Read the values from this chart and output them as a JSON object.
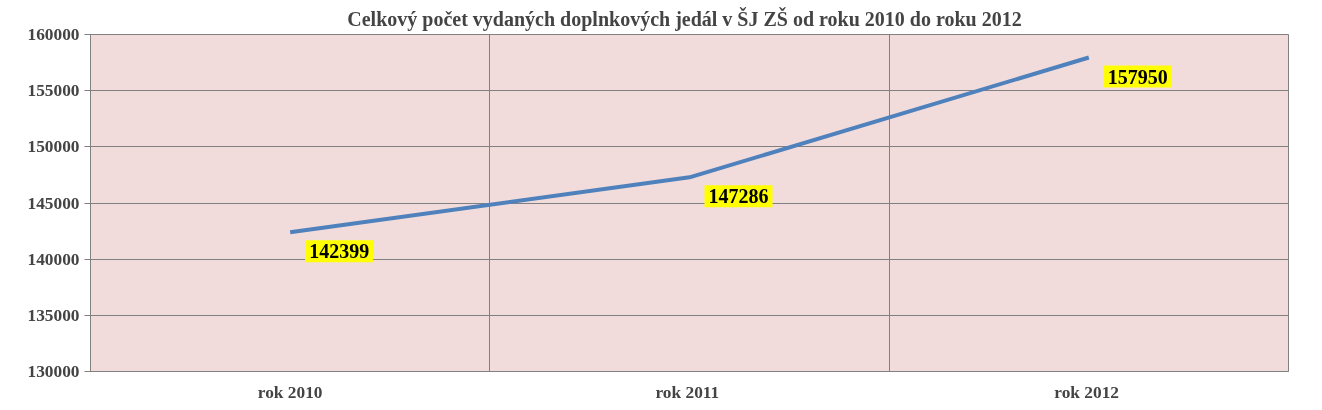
{
  "chart_data": {
    "type": "line",
    "title": "Celkový počet vydaných doplnkových jedál  v ŠJ ZŠ  od roku 2010 do roku 2012",
    "categories": [
      "rok 2010",
      "rok  2011",
      "rok  2012"
    ],
    "series": [
      {
        "color": "#4f81bd",
        "values": [
          142399,
          147286,
          157950
        ]
      }
    ],
    "ylim": [
      130000,
      160000
    ],
    "yticks": [
      130000,
      135000,
      140000,
      145000,
      150000,
      155000,
      160000
    ],
    "grid": true,
    "data_labels": true,
    "line_style": "solid"
  }
}
